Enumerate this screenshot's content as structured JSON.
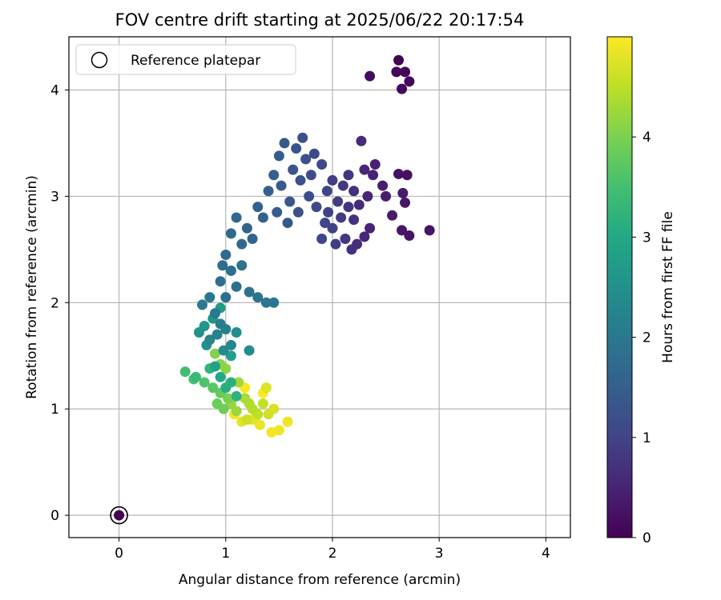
{
  "chart_data": {
    "type": "scatter",
    "title": "FOV centre drift starting at 2025/06/22 20:17:54",
    "xlabel": "Angular distance from reference (arcmin)",
    "ylabel": "Rotation from reference (arcmin)",
    "xlim": [
      -0.47,
      4.23
    ],
    "ylim": [
      -0.21,
      4.5
    ],
    "xticks": [
      0,
      1,
      2,
      3,
      4
    ],
    "yticks": [
      0,
      1,
      2,
      3,
      4
    ],
    "xtick_labels": [
      "0",
      "1",
      "2",
      "3",
      "4"
    ],
    "ytick_labels": [
      "0",
      "1",
      "2",
      "3",
      "4"
    ],
    "grid": true,
    "colormap": "viridis",
    "colorbar": {
      "label": "Hours from first FF file",
      "range": [
        0,
        5.0
      ],
      "ticks": [
        0,
        1,
        2,
        3,
        4
      ],
      "tick_labels": [
        "0",
        "1",
        "2",
        "3",
        "4"
      ]
    },
    "legend": {
      "position": "top-left",
      "entries": [
        "Reference platepar"
      ]
    },
    "reference_point": {
      "x": 0,
      "y": 0,
      "label": "Reference platepar"
    },
    "points_columns": [
      "x",
      "y",
      "hours"
    ],
    "points": [
      [
        2.62,
        4.28,
        0.02
      ],
      [
        2.68,
        4.17,
        0.05
      ],
      [
        2.6,
        4.17,
        0.08
      ],
      [
        2.72,
        4.08,
        0.1
      ],
      [
        2.65,
        4.01,
        0.12
      ],
      [
        2.35,
        4.13,
        0.15
      ],
      [
        2.7,
        3.2,
        0.2
      ],
      [
        2.62,
        3.21,
        0.22
      ],
      [
        2.91,
        2.68,
        0.25
      ],
      [
        2.72,
        2.63,
        0.27
      ],
      [
        2.65,
        2.68,
        0.3
      ],
      [
        2.68,
        2.94,
        0.32
      ],
      [
        2.66,
        3.03,
        0.35
      ],
      [
        2.56,
        2.82,
        0.37
      ],
      [
        2.5,
        3.0,
        0.4
      ],
      [
        2.47,
        3.1,
        0.42
      ],
      [
        2.4,
        3.3,
        0.45
      ],
      [
        2.38,
        3.2,
        0.47
      ],
      [
        2.35,
        2.7,
        0.5
      ],
      [
        2.33,
        3.0,
        0.52
      ],
      [
        2.3,
        2.62,
        0.55
      ],
      [
        2.3,
        3.25,
        0.57
      ],
      [
        2.27,
        3.52,
        0.6
      ],
      [
        2.25,
        2.92,
        0.62
      ],
      [
        2.23,
        2.55,
        0.65
      ],
      [
        2.2,
        3.05,
        0.67
      ],
      [
        2.2,
        2.78,
        0.7
      ],
      [
        2.18,
        2.5,
        0.72
      ],
      [
        2.15,
        3.2,
        0.75
      ],
      [
        2.15,
        2.9,
        0.77
      ],
      [
        2.12,
        2.6,
        0.8
      ],
      [
        2.1,
        3.1,
        0.82
      ],
      [
        2.08,
        2.8,
        0.85
      ],
      [
        2.05,
        2.95,
        0.87
      ],
      [
        2.03,
        2.55,
        0.9
      ],
      [
        2.0,
        3.15,
        0.92
      ],
      [
        2.0,
        2.7,
        0.95
      ],
      [
        1.96,
        2.85,
        0.97
      ],
      [
        1.95,
        3.05,
        1.0
      ],
      [
        1.93,
        2.75,
        1.02
      ],
      [
        1.9,
        2.6,
        1.05
      ],
      [
        1.9,
        3.3,
        1.07
      ],
      [
        1.85,
        2.9,
        1.1
      ],
      [
        1.83,
        3.4,
        1.12
      ],
      [
        1.8,
        3.2,
        1.15
      ],
      [
        1.78,
        3.0,
        1.17
      ],
      [
        1.75,
        3.35,
        1.2
      ],
      [
        1.72,
        3.55,
        1.22
      ],
      [
        1.7,
        3.15,
        1.25
      ],
      [
        1.68,
        2.85,
        1.27
      ],
      [
        1.66,
        3.45,
        1.3
      ],
      [
        1.63,
        3.25,
        1.32
      ],
      [
        1.6,
        2.95,
        1.35
      ],
      [
        1.58,
        2.75,
        1.37
      ],
      [
        1.55,
        3.5,
        1.4
      ],
      [
        1.52,
        3.1,
        1.42
      ],
      [
        1.5,
        3.38,
        1.45
      ],
      [
        1.48,
        2.85,
        1.47
      ],
      [
        1.45,
        3.2,
        1.5
      ],
      [
        1.4,
        3.05,
        1.52
      ],
      [
        1.35,
        2.8,
        1.55
      ],
      [
        1.3,
        2.9,
        1.57
      ],
      [
        1.25,
        2.6,
        1.6
      ],
      [
        1.2,
        2.7,
        1.62
      ],
      [
        1.15,
        2.55,
        1.65
      ],
      [
        1.1,
        2.8,
        1.67
      ],
      [
        1.05,
        2.65,
        1.7
      ],
      [
        1.0,
        2.45,
        1.72
      ],
      [
        0.97,
        2.35,
        1.75
      ],
      [
        0.95,
        2.2,
        1.77
      ],
      [
        1.0,
        2.05,
        1.8
      ],
      [
        1.05,
        2.3,
        1.82
      ],
      [
        1.1,
        2.15,
        1.85
      ],
      [
        1.15,
        2.35,
        1.87
      ],
      [
        1.22,
        2.1,
        1.9
      ],
      [
        1.3,
        2.05,
        1.92
      ],
      [
        1.38,
        2.0,
        1.95
      ],
      [
        1.45,
        2.0,
        1.97
      ],
      [
        0.85,
        2.05,
        2.0
      ],
      [
        0.78,
        1.98,
        2.02
      ],
      [
        0.9,
        1.9,
        2.05
      ],
      [
        0.95,
        1.8,
        2.1
      ],
      [
        1.0,
        1.75,
        2.15
      ],
      [
        0.92,
        1.7,
        2.2
      ],
      [
        0.85,
        1.65,
        2.25
      ],
      [
        1.05,
        1.6,
        2.3
      ],
      [
        0.98,
        1.55,
        2.35
      ],
      [
        1.22,
        1.55,
        2.4
      ],
      [
        1.1,
        1.72,
        2.45
      ],
      [
        0.82,
        1.6,
        2.5
      ],
      [
        0.75,
        1.72,
        2.55
      ],
      [
        0.88,
        1.85,
        2.6
      ],
      [
        0.8,
        1.78,
        2.65
      ],
      [
        0.95,
        1.95,
        2.7
      ],
      [
        1.05,
        1.5,
        2.8
      ],
      [
        0.9,
        1.4,
        2.9
      ],
      [
        0.95,
        1.3,
        3.0
      ],
      [
        1.0,
        1.2,
        3.1
      ],
      [
        1.05,
        1.25,
        3.15
      ],
      [
        1.1,
        1.12,
        3.2
      ],
      [
        0.85,
        1.38,
        3.25
      ],
      [
        0.72,
        1.3,
        3.35
      ],
      [
        0.62,
        1.35,
        3.45
      ],
      [
        0.7,
        1.28,
        3.5
      ],
      [
        0.8,
        1.25,
        3.6
      ],
      [
        0.88,
        1.2,
        3.7
      ],
      [
        0.95,
        1.15,
        3.8
      ],
      [
        0.92,
        1.05,
        3.85
      ],
      [
        0.98,
        1.0,
        3.9
      ],
      [
        1.02,
        1.1,
        4.0
      ],
      [
        0.9,
        1.52,
        4.05
      ],
      [
        0.95,
        1.42,
        4.1
      ],
      [
        1.0,
        1.38,
        4.15
      ],
      [
        1.05,
        1.05,
        4.2
      ],
      [
        1.1,
        0.98,
        4.25
      ],
      [
        1.12,
        1.25,
        4.3
      ],
      [
        1.18,
        1.1,
        4.35
      ],
      [
        1.22,
        1.05,
        4.4
      ],
      [
        1.25,
        1.0,
        4.45
      ],
      [
        1.3,
        0.95,
        4.5
      ],
      [
        1.35,
        1.05,
        4.55
      ],
      [
        1.2,
        0.9,
        4.6
      ],
      [
        1.4,
        0.95,
        4.65
      ],
      [
        1.45,
        1.0,
        4.7
      ],
      [
        1.38,
        1.2,
        4.75
      ],
      [
        1.15,
        0.88,
        4.8
      ],
      [
        1.25,
        0.9,
        4.82
      ],
      [
        1.32,
        0.85,
        4.85
      ],
      [
        1.5,
        0.8,
        4.88
      ],
      [
        1.58,
        0.88,
        4.9
      ],
      [
        1.43,
        0.78,
        4.93
      ],
      [
        1.08,
        0.95,
        4.95
      ],
      [
        1.28,
        0.92,
        4.97
      ],
      [
        1.18,
        1.2,
        4.98
      ],
      [
        1.35,
        1.15,
        4.99
      ]
    ]
  }
}
